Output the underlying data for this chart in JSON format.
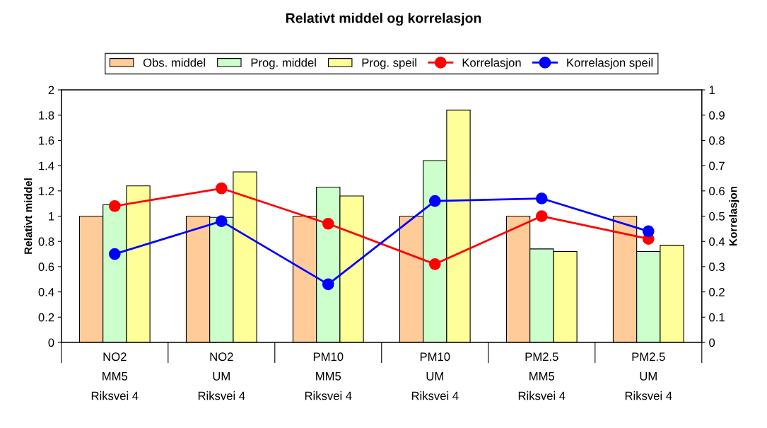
{
  "chart_data": {
    "type": "bar",
    "title": "Relativt middel og korrelasjon",
    "ylabel": "Relativt middel",
    "y2label": "Korrelasjon",
    "categories": [
      "NO2\nMM5\nRiksvei 4",
      "NO2\nUM\nRiksvei 4",
      "PM10\nMM5\nRiksvei 4",
      "PM10\nUM\nRiksvei 4",
      "PM2.5\nMM5\nRiksvei 4",
      "PM2.5\nUM\nRiksvei 4"
    ],
    "series": [
      {
        "name": "Obs. middel",
        "color": "#ffcc99",
        "values": [
          1.0,
          1.0,
          1.0,
          1.0,
          1.0,
          1.0
        ]
      },
      {
        "name": "Prog. middel",
        "color": "#ccffcc",
        "values": [
          1.09,
          0.99,
          1.23,
          1.44,
          0.74,
          0.72
        ]
      },
      {
        "name": "Prog. speil",
        "color": "#ffff99",
        "values": [
          1.24,
          1.35,
          1.16,
          1.84,
          0.72,
          0.77
        ]
      },
      {
        "name": "Korrelasjon",
        "type": "line",
        "axis": "y2",
        "color": "#ff0000",
        "marker": "circle",
        "values": [
          0.54,
          0.61,
          0.47,
          0.31,
          0.5,
          0.41
        ]
      },
      {
        "name": "Korrelasjon speil",
        "type": "line",
        "axis": "y2",
        "color": "#0000ff",
        "marker": "circle",
        "values": [
          0.35,
          0.48,
          0.23,
          0.56,
          0.57,
          0.44
        ]
      }
    ],
    "ylim": [
      0,
      2
    ],
    "yticks": [
      0,
      0.2,
      0.4,
      0.6,
      0.8,
      1,
      1.2,
      1.4,
      1.6,
      1.8,
      2
    ],
    "y2lim": [
      0,
      1
    ],
    "y2ticks": [
      0,
      0.1,
      0.2,
      0.3,
      0.4,
      0.5,
      0.6,
      0.7,
      0.8,
      0.9,
      1
    ],
    "legend": "top",
    "grid": false
  }
}
